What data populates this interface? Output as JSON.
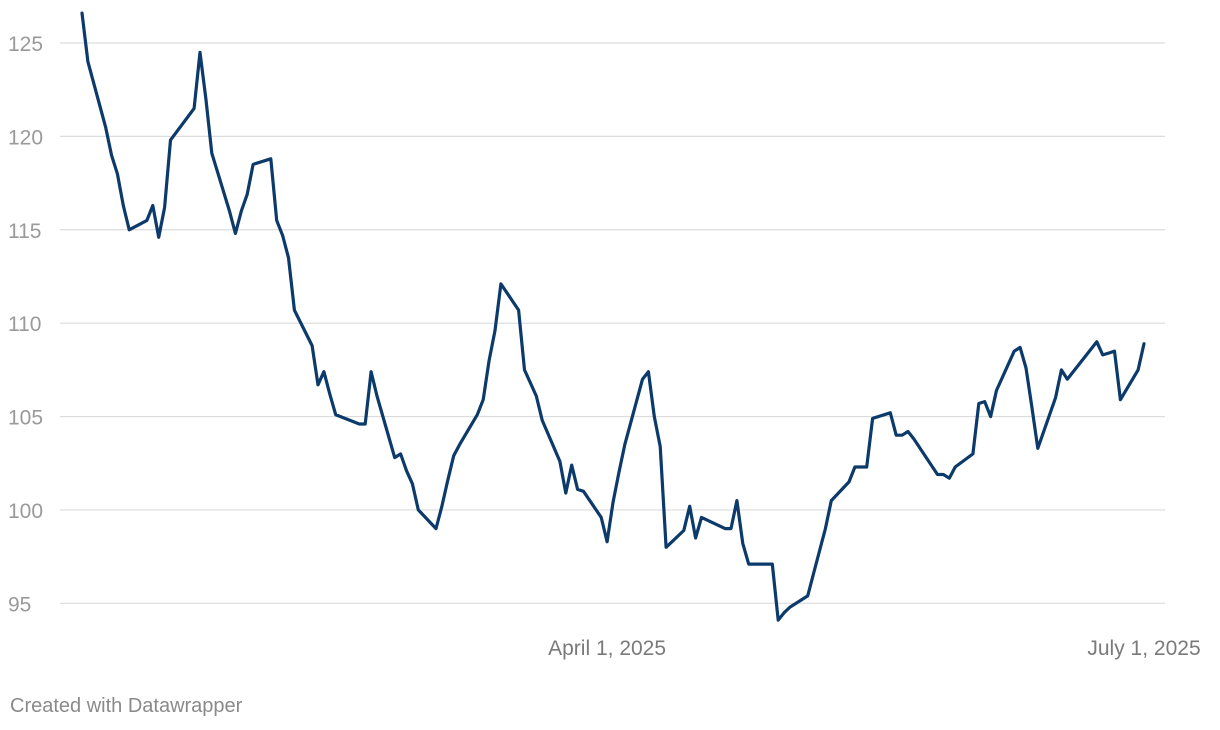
{
  "footer": {
    "credit": "Created with Datawrapper"
  },
  "chart_data": {
    "type": "line",
    "title": "",
    "xlabel": "",
    "ylabel": "",
    "x_range": [
      "2025-01-02",
      "2025-07-01"
    ],
    "ylim": [
      94,
      126.5
    ],
    "y_ticks": [
      95,
      100,
      105,
      110,
      115,
      120,
      125
    ],
    "x_ticks": [
      {
        "date": "2025-04-01",
        "label": "April 1, 2025"
      },
      {
        "date": "2025-07-01",
        "label": "July 1, 2025"
      }
    ],
    "grid": true,
    "legend": "none",
    "line_color": "#0b3a6b",
    "series": [
      {
        "values": [
          [
            "2025-01-02",
            126.6
          ],
          [
            "2025-01-03",
            124.0
          ],
          [
            "2025-01-06",
            120.5
          ],
          [
            "2025-01-07",
            119.0
          ],
          [
            "2025-01-08",
            118.0
          ],
          [
            "2025-01-09",
            116.3
          ],
          [
            "2025-01-10",
            115.0
          ],
          [
            "2025-01-13",
            115.5
          ],
          [
            "2025-01-14",
            116.3
          ],
          [
            "2025-01-15",
            114.6
          ],
          [
            "2025-01-16",
            116.2
          ],
          [
            "2025-01-17",
            119.8
          ],
          [
            "2025-01-21",
            121.5
          ],
          [
            "2025-01-22",
            124.5
          ],
          [
            "2025-01-23",
            122.0
          ],
          [
            "2025-01-24",
            119.1
          ],
          [
            "2025-01-27",
            116.0
          ],
          [
            "2025-01-28",
            114.8
          ],
          [
            "2025-01-29",
            116.0
          ],
          [
            "2025-01-30",
            116.9
          ],
          [
            "2025-01-31",
            118.5
          ],
          [
            "2025-02-03",
            118.8
          ],
          [
            "2025-02-04",
            115.5
          ],
          [
            "2025-02-05",
            114.7
          ],
          [
            "2025-02-06",
            113.5
          ],
          [
            "2025-02-07",
            110.7
          ],
          [
            "2025-02-10",
            108.8
          ],
          [
            "2025-02-11",
            106.7
          ],
          [
            "2025-02-12",
            107.4
          ],
          [
            "2025-02-13",
            106.2
          ],
          [
            "2025-02-14",
            105.1
          ],
          [
            "2025-02-18",
            104.6
          ],
          [
            "2025-02-19",
            104.6
          ],
          [
            "2025-02-20",
            107.4
          ],
          [
            "2025-02-21",
            106.1
          ],
          [
            "2025-02-24",
            102.8
          ],
          [
            "2025-02-25",
            103.0
          ],
          [
            "2025-02-26",
            102.1
          ],
          [
            "2025-02-27",
            101.4
          ],
          [
            "2025-02-28",
            100.0
          ],
          [
            "2025-03-03",
            99.0
          ],
          [
            "2025-03-04",
            100.2
          ],
          [
            "2025-03-05",
            101.6
          ],
          [
            "2025-03-06",
            102.9
          ],
          [
            "2025-03-07",
            103.5
          ],
          [
            "2025-03-10",
            105.1
          ],
          [
            "2025-03-11",
            105.9
          ],
          [
            "2025-03-12",
            108.0
          ],
          [
            "2025-03-13",
            109.6
          ],
          [
            "2025-03-14",
            112.1
          ],
          [
            "2025-03-17",
            110.7
          ],
          [
            "2025-03-18",
            107.5
          ],
          [
            "2025-03-19",
            106.8
          ],
          [
            "2025-03-20",
            106.1
          ],
          [
            "2025-03-21",
            104.8
          ],
          [
            "2025-03-24",
            102.6
          ],
          [
            "2025-03-25",
            100.9
          ],
          [
            "2025-03-26",
            102.4
          ],
          [
            "2025-03-27",
            101.1
          ],
          [
            "2025-03-28",
            101.0
          ],
          [
            "2025-03-31",
            99.6
          ],
          [
            "2025-04-01",
            98.3
          ],
          [
            "2025-04-02",
            100.4
          ],
          [
            "2025-04-03",
            102.0
          ],
          [
            "2025-04-04",
            103.5
          ],
          [
            "2025-04-07",
            107.0
          ],
          [
            "2025-04-08",
            107.4
          ],
          [
            "2025-04-09",
            105.0
          ],
          [
            "2025-04-10",
            103.4
          ],
          [
            "2025-04-11",
            98.0
          ],
          [
            "2025-04-14",
            98.9
          ],
          [
            "2025-04-15",
            100.2
          ],
          [
            "2025-04-16",
            98.5
          ],
          [
            "2025-04-17",
            99.6
          ],
          [
            "2025-04-21",
            99.0
          ],
          [
            "2025-04-22",
            99.0
          ],
          [
            "2025-04-23",
            100.5
          ],
          [
            "2025-04-24",
            98.2
          ],
          [
            "2025-04-25",
            97.1
          ],
          [
            "2025-04-28",
            97.1
          ],
          [
            "2025-04-29",
            97.1
          ],
          [
            "2025-04-30",
            94.1
          ],
          [
            "2025-05-01",
            94.5
          ],
          [
            "2025-05-02",
            94.8
          ],
          [
            "2025-05-05",
            95.4
          ],
          [
            "2025-05-06",
            96.6
          ],
          [
            "2025-05-07",
            97.8
          ],
          [
            "2025-05-08",
            99.0
          ],
          [
            "2025-05-09",
            100.5
          ],
          [
            "2025-05-12",
            101.5
          ],
          [
            "2025-05-13",
            102.3
          ],
          [
            "2025-05-14",
            102.3
          ],
          [
            "2025-05-15",
            102.3
          ],
          [
            "2025-05-16",
            104.9
          ],
          [
            "2025-05-19",
            105.2
          ],
          [
            "2025-05-20",
            104.0
          ],
          [
            "2025-05-21",
            104.0
          ],
          [
            "2025-05-22",
            104.2
          ],
          [
            "2025-05-23",
            103.8
          ],
          [
            "2025-05-27",
            101.9
          ],
          [
            "2025-05-28",
            101.9
          ],
          [
            "2025-05-29",
            101.7
          ],
          [
            "2025-05-30",
            102.3
          ],
          [
            "2025-06-02",
            103.0
          ],
          [
            "2025-06-03",
            105.7
          ],
          [
            "2025-06-04",
            105.8
          ],
          [
            "2025-06-05",
            105.0
          ],
          [
            "2025-06-06",
            106.4
          ],
          [
            "2025-06-09",
            108.5
          ],
          [
            "2025-06-10",
            108.7
          ],
          [
            "2025-06-11",
            107.6
          ],
          [
            "2025-06-12",
            105.5
          ],
          [
            "2025-06-13",
            103.3
          ],
          [
            "2025-06-16",
            106.0
          ],
          [
            "2025-06-17",
            107.5
          ],
          [
            "2025-06-18",
            107.0
          ],
          [
            "2025-06-20",
            107.8
          ],
          [
            "2025-06-23",
            109.0
          ],
          [
            "2025-06-24",
            108.3
          ],
          [
            "2025-06-25",
            108.4
          ],
          [
            "2025-06-26",
            108.5
          ],
          [
            "2025-06-27",
            105.9
          ],
          [
            "2025-06-30",
            107.5
          ],
          [
            "2025-07-01",
            108.9
          ]
        ]
      }
    ]
  }
}
